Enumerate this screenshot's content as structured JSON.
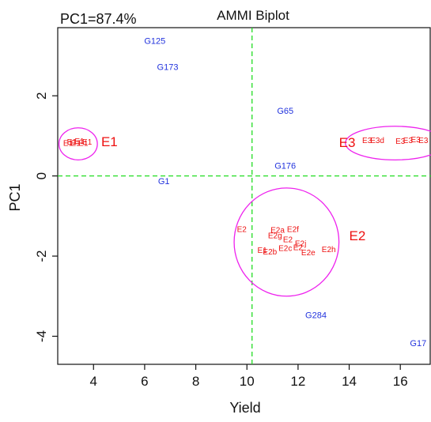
{
  "chart_data": {
    "type": "scatter",
    "title": "AMMI Biplot",
    "subtitle": "PC1=87.4%",
    "xlabel": "Yield",
    "ylabel": "PC1",
    "xlim": [
      2.6,
      17.2
    ],
    "ylim": [
      -4.7,
      3.7
    ],
    "x_ticks": [
      4,
      6,
      8,
      10,
      12,
      14,
      16
    ],
    "y_ticks": [
      -4,
      -2,
      0,
      2
    ],
    "reference_lines": {
      "x": 10.2,
      "y": 0,
      "color": "#22dd22"
    },
    "genotype_color": "#2233dd",
    "environment_color": "#ee1111",
    "cluster_color": "#ee22ee",
    "genotypes": [
      {
        "label": "G125",
        "x": 6.4,
        "y": 3.3
      },
      {
        "label": "G173",
        "x": 6.9,
        "y": 2.65
      },
      {
        "label": "G65",
        "x": 11.5,
        "y": 1.55
      },
      {
        "label": "G176",
        "x": 11.5,
        "y": 0.18
      },
      {
        "label": "G1",
        "x": 6.75,
        "y": -0.2
      },
      {
        "label": "G284",
        "x": 12.7,
        "y": -3.55
      },
      {
        "label": "G17",
        "x": 16.7,
        "y": -4.25
      }
    ],
    "environments": [
      {
        "label": "E1",
        "x": 3.0,
        "y": 0.75
      },
      {
        "label": "E1",
        "x": 3.15,
        "y": 0.78
      },
      {
        "label": "E1",
        "x": 3.3,
        "y": 0.75
      },
      {
        "label": "E1",
        "x": 3.45,
        "y": 0.8
      },
      {
        "label": "E1",
        "x": 3.6,
        "y": 0.75
      },
      {
        "label": "E1",
        "x": 3.75,
        "y": 0.78
      },
      {
        "label": "E3",
        "x": 14.7,
        "y": 0.82
      },
      {
        "label": "E3d",
        "x": 15.1,
        "y": 0.82
      },
      {
        "label": "E3",
        "x": 16.0,
        "y": 0.8
      },
      {
        "label": "E3",
        "x": 16.3,
        "y": 0.82
      },
      {
        "label": "E3",
        "x": 16.6,
        "y": 0.84
      },
      {
        "label": "E3",
        "x": 16.9,
        "y": 0.82
      },
      {
        "label": "E2",
        "x": 9.8,
        "y": -1.4
      },
      {
        "label": "E2a",
        "x": 11.2,
        "y": -1.42
      },
      {
        "label": "E2f",
        "x": 11.8,
        "y": -1.4
      },
      {
        "label": "E2g",
        "x": 11.1,
        "y": -1.55
      },
      {
        "label": "E2",
        "x": 11.6,
        "y": -1.65
      },
      {
        "label": "E2j",
        "x": 12.1,
        "y": -1.75
      },
      {
        "label": "E2",
        "x": 12.0,
        "y": -1.85
      },
      {
        "label": "E2c",
        "x": 11.5,
        "y": -1.87
      },
      {
        "label": "E2e",
        "x": 12.4,
        "y": -1.98
      },
      {
        "label": "E2h",
        "x": 13.2,
        "y": -1.9
      },
      {
        "label": "E1",
        "x": 10.6,
        "y": -1.92
      },
      {
        "label": "E2b",
        "x": 10.9,
        "y": -1.96
      }
    ],
    "clusters": [
      {
        "label": "E1",
        "cx": 3.4,
        "cy": 0.8,
        "rx": 0.75,
        "ry": 0.4,
        "label_x": 4.3,
        "label_y": 0.74
      },
      {
        "label": "E3",
        "cx": 15.8,
        "cy": 0.82,
        "rx": 1.95,
        "ry": 0.42,
        "label_x": 13.6,
        "label_y": 0.72
      },
      {
        "label": "E2",
        "cx": 11.55,
        "cy": -1.65,
        "rx": 2.05,
        "ry": 1.35,
        "label_x": 14.0,
        "label_y": -1.6
      }
    ],
    "grid": false,
    "legend": "none"
  }
}
